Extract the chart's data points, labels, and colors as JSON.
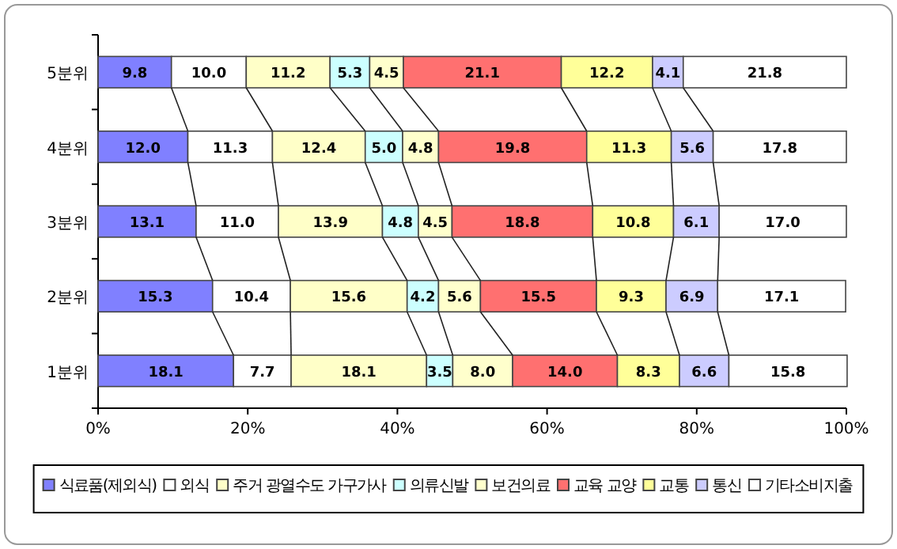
{
  "chart_data": {
    "type": "bar",
    "orientation": "horizontal",
    "stacked": true,
    "categories": [
      "5분위",
      "4분위",
      "3분위",
      "2분위",
      "1분위"
    ],
    "series": [
      {
        "name": "식료품(제외식)",
        "color": "#8080ff",
        "values": [
          9.8,
          12.0,
          13.1,
          15.3,
          18.1
        ],
        "value_labels": [
          "9.8",
          "12.0",
          "13.1",
          "15.3",
          "18.1"
        ]
      },
      {
        "name": "외식",
        "color": "#ffffff",
        "values": [
          10.0,
          11.3,
          11.0,
          10.4,
          7.7
        ],
        "value_labels": [
          "10.0",
          "11.3",
          "11.0",
          "10.4",
          "7.7"
        ]
      },
      {
        "name": "주거 광열수도 가구가사",
        "color": "#ffffc8",
        "values": [
          11.2,
          12.4,
          13.9,
          15.6,
          18.1
        ],
        "value_labels": [
          "11.2",
          "12.4",
          "13.9",
          "15.6",
          "18.1"
        ]
      },
      {
        "name": "의류신발",
        "color": "#ccffff",
        "values": [
          5.3,
          5.0,
          4.8,
          4.2,
          3.5
        ],
        "value_labels": [
          "5.3",
          "5.0",
          "4.8",
          "4.2",
          "3.5"
        ]
      },
      {
        "name": "보건의료",
        "color": "#ffffcc",
        "values": [
          4.5,
          4.8,
          4.5,
          5.6,
          8.0
        ],
        "value_labels": [
          "4.5",
          "4.8",
          "4.5",
          "5.6",
          "8.0"
        ]
      },
      {
        "name": "교육 교양",
        "color": "#ff7070",
        "values": [
          21.1,
          19.8,
          18.8,
          15.5,
          14.0
        ],
        "value_labels": [
          "21.1",
          "19.8",
          "18.8",
          "15.5",
          "14.0"
        ]
      },
      {
        "name": "교통",
        "color": "#ffff99",
        "values": [
          12.2,
          11.3,
          10.8,
          9.3,
          8.3
        ],
        "value_labels": [
          "12.2",
          "11.3",
          "10.8",
          "9.3",
          "8.3"
        ]
      },
      {
        "name": "통신",
        "color": "#ccccff",
        "values": [
          4.1,
          5.6,
          6.1,
          6.9,
          6.6
        ],
        "value_labels": [
          "4.1",
          "5.6",
          "6.1",
          "6.9",
          "6.6"
        ]
      },
      {
        "name": "기타소비지출",
        "color": "#ffffff",
        "values": [
          21.8,
          17.8,
          17.0,
          17.1,
          15.8
        ],
        "value_labels": [
          "21.8",
          "17.8",
          "17.0",
          "17.1",
          "15.8"
        ]
      }
    ],
    "xlim": [
      0,
      100
    ],
    "xticks": [
      {
        "value": 0,
        "label": "0%"
      },
      {
        "value": 20,
        "label": "20%"
      },
      {
        "value": 40,
        "label": "40%"
      },
      {
        "value": 60,
        "label": "60%"
      },
      {
        "value": 80,
        "label": "80%"
      },
      {
        "value": 100,
        "label": "100%"
      }
    ],
    "legend": "bottom",
    "grid": false
  }
}
